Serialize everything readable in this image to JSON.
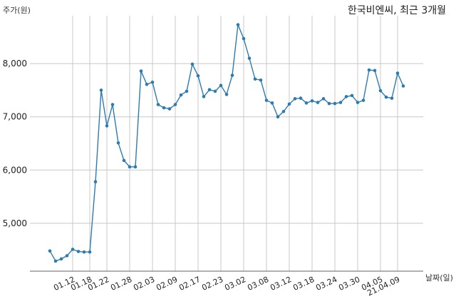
{
  "chart_data": {
    "type": "line",
    "title": "한국비엔씨, 최근 3개월",
    "ylabel": "주가(원)",
    "xlabel": "날짜(일)",
    "ylim": [
      4100,
      8900
    ],
    "yticks": [
      {
        "value": 5000,
        "label": "5,000"
      },
      {
        "value": 6000,
        "label": "6,000"
      },
      {
        "value": 7000,
        "label": "7,000"
      },
      {
        "value": 8000,
        "label": "8,000"
      }
    ],
    "xtick_labels": [
      "01.12",
      "01.18",
      "01.22",
      "01.28",
      "02.03",
      "02.09",
      "02.17",
      "02.23",
      "03.02",
      "03.08",
      "03.12",
      "03.18",
      "03.24",
      "03.30",
      "04.05",
      "21.04.09"
    ],
    "xtick_index": [
      4,
      7,
      10,
      14,
      18,
      22,
      26,
      30,
      34,
      38,
      42,
      46,
      50,
      54,
      58,
      61
    ],
    "grid": true,
    "series": [
      {
        "color": "#2e7bb0",
        "values": [
          4480,
          4290,
          4330,
          4390,
          4510,
          4470,
          4460,
          4460,
          5780,
          7500,
          6830,
          7230,
          6510,
          6180,
          6060,
          6060,
          7860,
          7610,
          7650,
          7230,
          7170,
          7150,
          7230,
          7410,
          7480,
          7990,
          7770,
          7380,
          7510,
          7480,
          7590,
          7420,
          7780,
          8730,
          8470,
          8100,
          7710,
          7690,
          7310,
          7260,
          7000,
          7100,
          7240,
          7340,
          7350,
          7260,
          7300,
          7270,
          7340,
          7250,
          7250,
          7270,
          7380,
          7400,
          7270,
          7310,
          7880,
          7870,
          7490,
          7370,
          7350,
          7820,
          7580
        ]
      }
    ]
  }
}
